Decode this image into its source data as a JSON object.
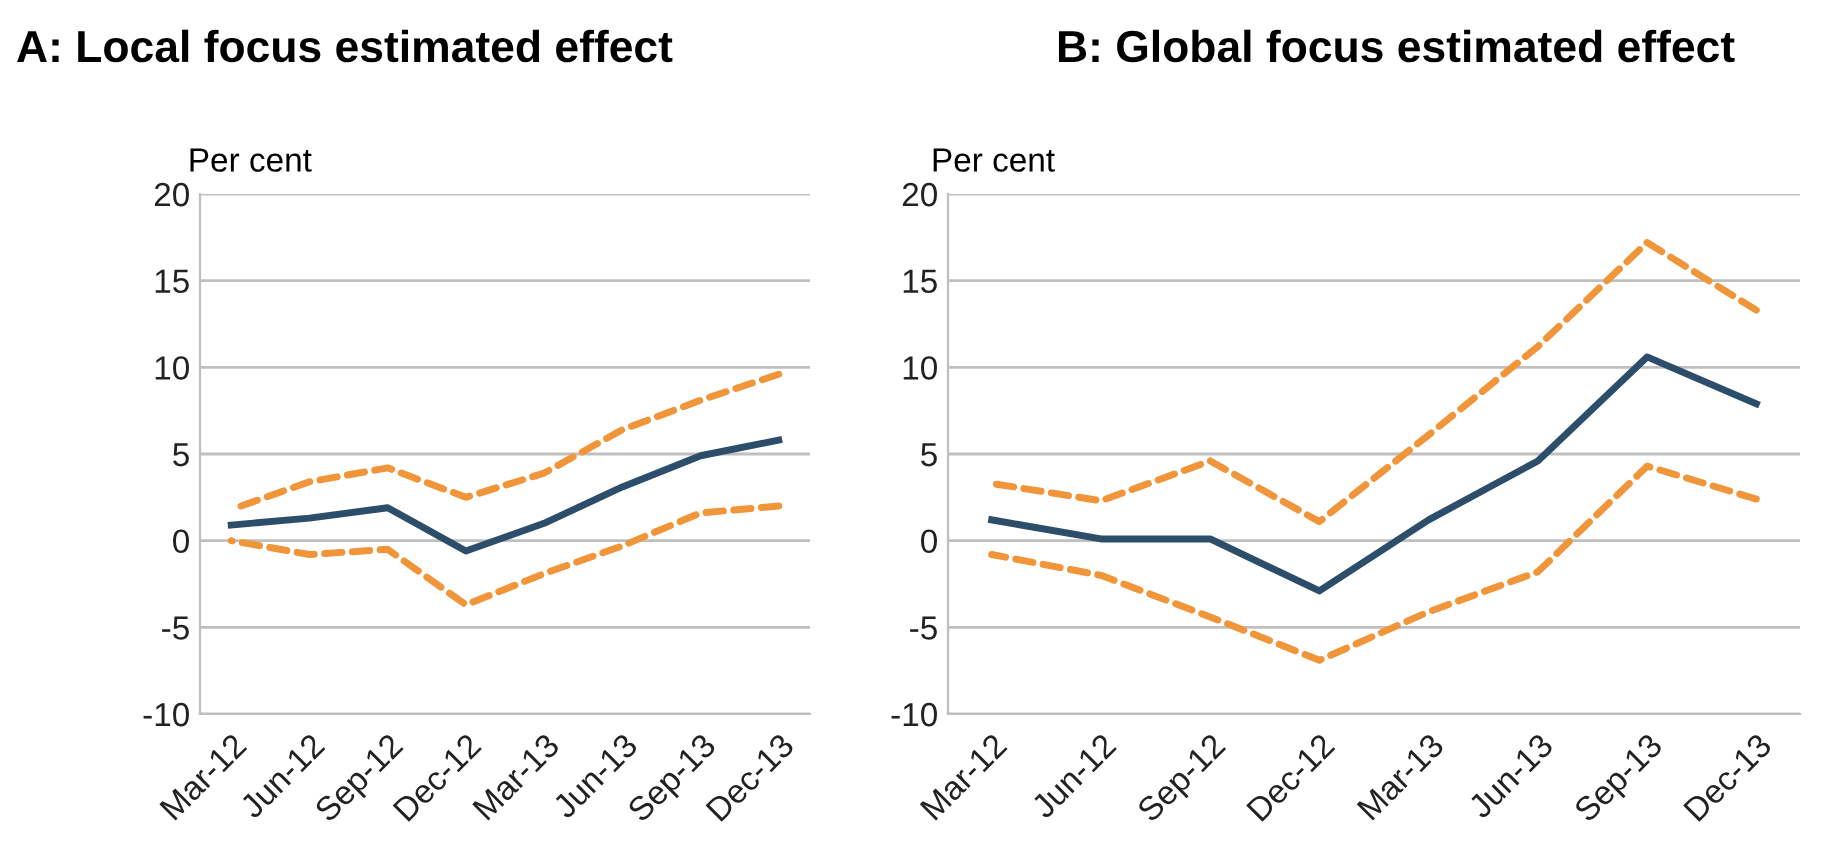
{
  "chart_data": [
    {
      "type": "line",
      "title": "A: Local focus estimated effect",
      "ylabel": "Per cent",
      "categories": [
        "Mar-12",
        "Jun-12",
        "Sep-12",
        "Dec-12",
        "Mar-13",
        "Jun-13",
        "Sep-13",
        "Dec-13"
      ],
      "ylim": [
        -10,
        20
      ],
      "yticks": [
        -10,
        -5,
        0,
        5,
        10,
        15,
        20
      ],
      "grid": "y",
      "marker": "none",
      "series": [
        {
          "color": "#f0953a",
          "line_style": "dashed",
          "values": [
            1.8,
            3.4,
            4.2,
            2.5,
            3.9,
            6.4,
            8.1,
            9.6
          ]
        },
        {
          "color": "#f0953a",
          "line_style": "dashed",
          "values": [
            0.0,
            -0.8,
            -0.5,
            -3.7,
            -1.9,
            -0.3,
            1.6,
            2.0
          ]
        },
        {
          "color": "#2d4e6b",
          "line_style": "solid",
          "values": [
            0.9,
            1.3,
            1.9,
            -0.6,
            1.0,
            3.1,
            4.9,
            5.8
          ]
        }
      ]
    },
    {
      "type": "line",
      "title": "B: Global focus estimated effect",
      "ylabel": "Per cent",
      "categories": [
        "Mar-12",
        "Jun-12",
        "Sep-12",
        "Dec-12",
        "Mar-13",
        "Jun-13",
        "Sep-13",
        "Dec-13"
      ],
      "ylim": [
        -10,
        20
      ],
      "yticks": [
        -10,
        -5,
        0,
        5,
        10,
        15,
        20
      ],
      "grid": "y",
      "marker": "none",
      "series": [
        {
          "color": "#f0953a",
          "line_style": "dashed",
          "values": [
            3.3,
            2.3,
            4.6,
            1.1,
            6.1,
            11.2,
            17.2,
            13.3
          ]
        },
        {
          "color": "#f0953a",
          "line_style": "dashed",
          "values": [
            -0.8,
            -2.0,
            -4.4,
            -6.9,
            -4.1,
            -1.8,
            4.3,
            2.4
          ]
        },
        {
          "color": "#2d4e6b",
          "line_style": "solid",
          "values": [
            1.2,
            0.1,
            0.1,
            -2.9,
            1.2,
            4.6,
            10.6,
            7.9
          ]
        }
      ]
    }
  ]
}
